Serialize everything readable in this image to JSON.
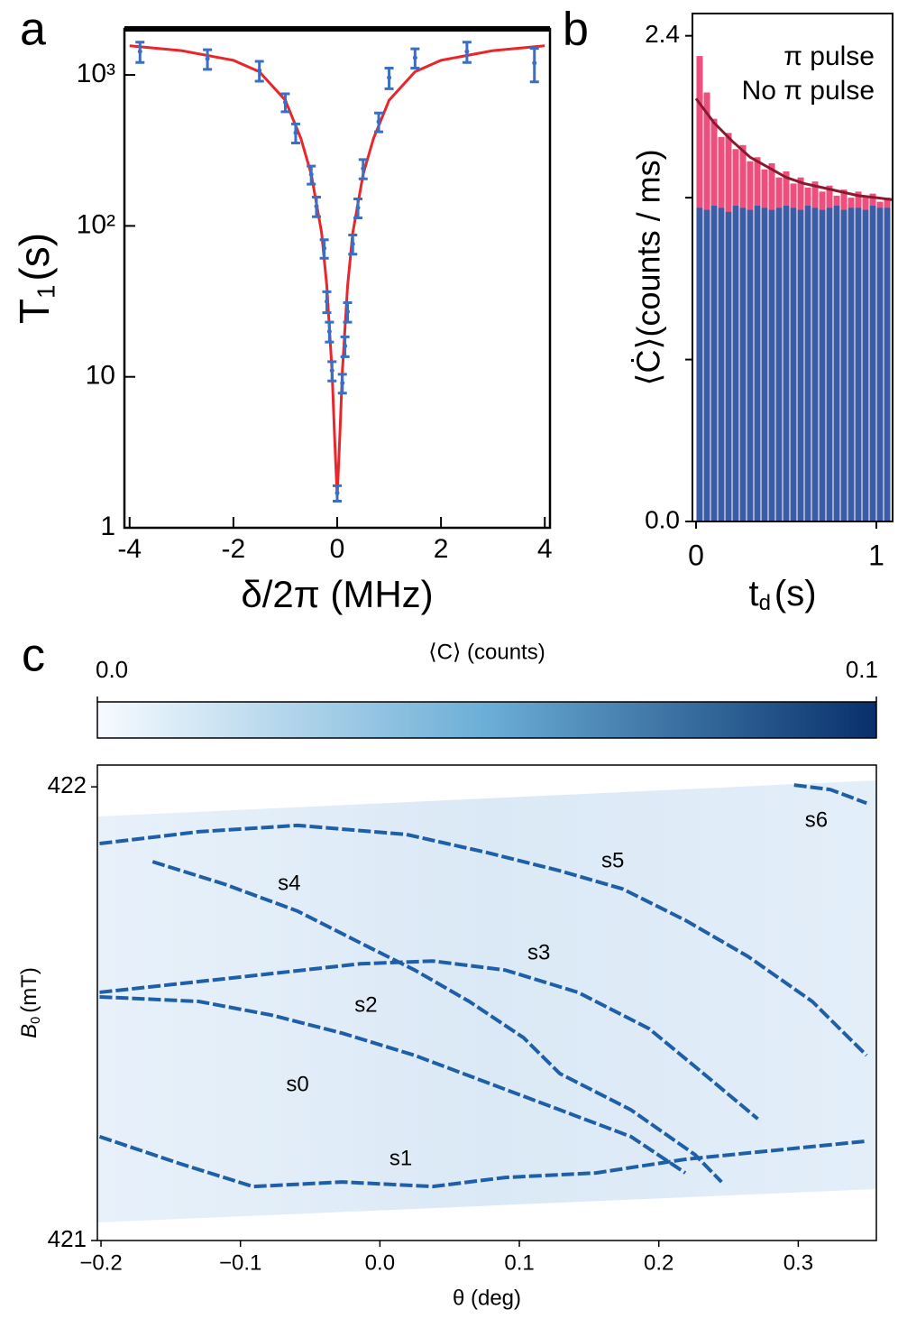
{
  "chart_data": [
    {
      "type": "scatter",
      "label": "a",
      "log_y": true,
      "xlabel": "δ/2π (MHz)",
      "ylabel": {
        "main": "T",
        "sub": "1",
        "unit": "(s)"
      },
      "xlim": [
        -4.1,
        4.1
      ],
      "ylim": [
        1,
        2020
      ],
      "xticks": [
        -4,
        -2,
        0,
        2,
        4
      ],
      "yticks": [
        1,
        10,
        {
          "value": 100,
          "label": "10²"
        },
        {
          "value": 1000,
          "label": "10³"
        }
      ],
      "points": {
        "color": "#3a6fc4",
        "x": [
          -3.8,
          -2.5,
          -1.5,
          -1.0,
          -0.8,
          -0.5,
          -0.4,
          -0.25,
          -0.2,
          -0.15,
          -0.1,
          0,
          0.1,
          0.15,
          0.2,
          0.3,
          0.4,
          0.5,
          0.8,
          1.0,
          1.5,
          2.5,
          3.8
        ],
        "values": [
          1430,
          1280,
          1070,
          660,
          414,
          219,
          135,
          71,
          31.6,
          20,
          11,
          1.7,
          9.1,
          16,
          27,
          76,
          132,
          240,
          490,
          960,
          1300,
          1430,
          1200
        ],
        "errors": [
          220,
          190,
          160,
          90,
          60,
          30,
          20,
          10,
          5,
          3,
          1.6,
          0.2,
          1.3,
          2.4,
          4,
          11,
          19,
          35,
          70,
          150,
          190,
          220,
          300
        ]
      },
      "fit": {
        "color": "#e8262b",
        "x": [
          -4,
          -3,
          -2,
          -1.5,
          -1,
          -0.7,
          -0.5,
          -0.3,
          -0.2,
          -0.1,
          -0.05,
          0,
          0.05,
          0.1,
          0.2,
          0.3,
          0.5,
          0.7,
          1,
          1.5,
          2,
          3,
          4
        ],
        "values": [
          1560,
          1450,
          1250,
          1050,
          680,
          380,
          220,
          90,
          40,
          11,
          4,
          1.6,
          4,
          11,
          40,
          90,
          220,
          380,
          680,
          1050,
          1250,
          1450,
          1560
        ]
      }
    },
    {
      "type": "histogram",
      "label": "b",
      "xlabel": {
        "main": "t",
        "sub": "d",
        "unit": "(s)"
      },
      "ylabel": "⟨Ċ⟩(counts / ms)",
      "xlim": [
        -0.02,
        1.09
      ],
      "ylim": [
        0,
        2.51
      ],
      "xticks": [
        0,
        1
      ],
      "yticks": [
        {
          "value": 0,
          "label": "0.0"
        },
        {
          "value": 2.4,
          "label": "2.4"
        }
      ],
      "minor_yticks": [
        0.8,
        1.6
      ],
      "legend": "upper right",
      "bins": [
        0,
        0.04,
        0.08,
        0.12,
        0.16,
        0.2,
        0.24,
        0.28,
        0.32,
        0.36,
        0.4,
        0.44,
        0.48,
        0.52,
        0.56,
        0.6,
        0.64,
        0.68,
        0.72,
        0.76,
        0.8,
        0.84,
        0.88,
        0.92,
        0.96,
        1.0,
        1.04,
        1.08
      ],
      "series": [
        {
          "name": "π pulse",
          "color": "#ef4f7d",
          "legend_color": "#ff00ff",
          "values": [
            2.3,
            2.12,
            1.99,
            1.9,
            1.92,
            1.84,
            1.86,
            1.78,
            1.8,
            1.74,
            1.77,
            1.7,
            1.73,
            1.67,
            1.7,
            1.65,
            1.68,
            1.63,
            1.66,
            1.61,
            1.64,
            1.6,
            1.63,
            1.6,
            1.62,
            1.58,
            1.6
          ]
        },
        {
          "name": "No π pulse",
          "color": "#3c5ca6",
          "legend_color": "#0000ff",
          "values": [
            1.55,
            1.54,
            1.56,
            1.55,
            1.53,
            1.56,
            1.55,
            1.54,
            1.56,
            1.55,
            1.54,
            1.55,
            1.56,
            1.55,
            1.54,
            1.56,
            1.55,
            1.54,
            1.55,
            1.56,
            1.54,
            1.55,
            1.55,
            1.54,
            1.56,
            1.55,
            1.55
          ]
        }
      ],
      "fit": {
        "color": "#8b1a2e",
        "x": [
          0,
          0.1,
          0.2,
          0.3,
          0.4,
          0.5,
          0.6,
          0.7,
          0.8,
          0.9,
          1.0,
          1.09
        ],
        "values": [
          2.09,
          1.97,
          1.88,
          1.8,
          1.75,
          1.7,
          1.67,
          1.65,
          1.63,
          1.61,
          1.6,
          1.59
        ]
      }
    },
    {
      "type": "heatmap",
      "label": "c",
      "xlabel": "θ (deg)",
      "ylabel": {
        "main": "B",
        "sub": "0",
        "unit": "(mT)"
      },
      "xlim": [
        -0.2026,
        0.356
      ],
      "ylim": [
        421,
        422.048
      ],
      "xticks": [
        {
          "value": -0.2,
          "label": "−0.2"
        },
        {
          "value": -0.1,
          "label": "−0.1"
        },
        {
          "value": 0,
          "label": "0.0"
        },
        {
          "value": 0.1,
          "label": "0.1"
        },
        {
          "value": 0.2,
          "label": "0.2"
        },
        {
          "value": 0.3,
          "label": "0.3"
        }
      ],
      "yticks": [
        421,
        422
      ],
      "colorbar": {
        "label": "⟨C⟩ (counts)",
        "lim": [
          0,
          0.1
        ],
        "colors": [
          "#f7fbff",
          "#6baed6",
          "#08306b"
        ],
        "ticks": [
          {
            "value": 0,
            "label": "0.0"
          },
          {
            "value": 0.1,
            "label": "0.1"
          }
        ]
      },
      "trace_color": "#1f5fa8",
      "traces": [
        {
          "x": [
            -0.201,
            -0.13,
            -0.059,
            0.019,
            0.077,
            0.129,
            0.174,
            0.219,
            0.264,
            0.31,
            0.349
          ],
          "values": [
            421.875,
            421.901,
            421.915,
            421.895,
            421.855,
            421.815,
            421.775,
            421.706,
            421.626,
            421.527,
            421.408
          ]
        },
        {
          "x": [
            -0.163,
            -0.111,
            -0.059,
            -0.014,
            0.025,
            0.064,
            0.103,
            0.129,
            0.18,
            0.226,
            0.245
          ],
          "values": [
            421.835,
            421.785,
            421.726,
            421.656,
            421.596,
            421.527,
            421.447,
            421.368,
            421.288,
            421.189,
            421.129
          ]
        },
        {
          "x": [
            -0.201,
            -0.111,
            -0.014,
            0.038,
            0.09,
            0.142,
            0.193,
            0.232,
            0.271
          ],
          "values": [
            421.547,
            421.577,
            421.61,
            421.616,
            421.596,
            421.547,
            421.467,
            421.368,
            421.268
          ]
        },
        {
          "x": [
            -0.201,
            -0.13,
            -0.078,
            -0.027,
            0.025,
            0.077,
            0.129,
            0.18,
            0.219
          ],
          "values": [
            421.537,
            421.527,
            421.497,
            421.457,
            421.408,
            421.348,
            421.288,
            421.229,
            421.149
          ]
        },
        {
          "x": [
            -0.201,
            -0.143,
            -0.091,
            -0.027,
            0.038,
            0.09,
            0.155,
            0.219,
            0.284,
            0.349
          ],
          "values": [
            421.229,
            421.169,
            421.119,
            421.129,
            421.119,
            421.139,
            421.149,
            421.179,
            421.199,
            421.219
          ]
        },
        {
          "x": [
            0.297,
            0.323,
            0.349
          ],
          "values": [
            422.004,
            421.994,
            421.964
          ]
        }
      ],
      "annotations": [
        {
          "text": "s0",
          "x": -0.059,
          "y": 421.342
        },
        {
          "text": "s1",
          "x": 0.015,
          "y": 421.179
        },
        {
          "text": "s2",
          "x": -0.01,
          "y": 421.517
        },
        {
          "text": "s3",
          "x": 0.114,
          "y": 421.632
        },
        {
          "text": "s4",
          "x": -0.065,
          "y": 421.785
        },
        {
          "text": "s5",
          "x": 0.167,
          "y": 421.835
        },
        {
          "text": "s6",
          "x": 0.313,
          "y": 421.924
        }
      ]
    }
  ]
}
